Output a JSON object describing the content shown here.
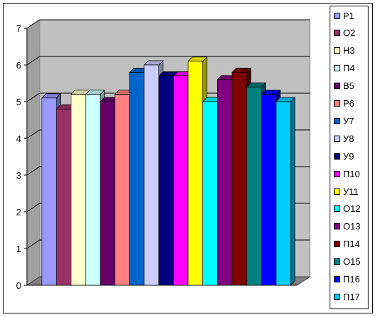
{
  "chart_data": {
    "type": "bar",
    "title": "",
    "xlabel": "",
    "ylabel": "",
    "ylim": [
      0,
      7
    ],
    "yticks": [
      "0",
      "1",
      "2",
      "3",
      "4",
      "5",
      "6",
      "7"
    ],
    "grid": true,
    "legend_position": "right",
    "series": [
      {
        "name": "Р1",
        "value": 5.1,
        "color": "#9999ff"
      },
      {
        "name": "О2",
        "value": 4.8,
        "color": "#993366"
      },
      {
        "name": "Н3",
        "value": 5.2,
        "color": "#ffffcc"
      },
      {
        "name": "П4",
        "value": 5.2,
        "color": "#ccffff"
      },
      {
        "name": "В5",
        "value": 5.0,
        "color": "#660066"
      },
      {
        "name": "Р6",
        "value": 5.2,
        "color": "#ff8080"
      },
      {
        "name": "У7",
        "value": 5.8,
        "color": "#0066cc"
      },
      {
        "name": "У8",
        "value": 6.0,
        "color": "#ccccff"
      },
      {
        "name": "У9",
        "value": 5.7,
        "color": "#000080"
      },
      {
        "name": "П10",
        "value": 5.7,
        "color": "#ff00ff"
      },
      {
        "name": "У11",
        "value": 6.1,
        "color": "#ffff00"
      },
      {
        "name": "О12",
        "value": 5.0,
        "color": "#00ffff"
      },
      {
        "name": "О13",
        "value": 5.6,
        "color": "#800080"
      },
      {
        "name": "П14",
        "value": 5.8,
        "color": "#800000"
      },
      {
        "name": "О15",
        "value": 5.4,
        "color": "#008080"
      },
      {
        "name": "П16",
        "value": 5.2,
        "color": "#0000ff"
      },
      {
        "name": "П17",
        "value": 5.0,
        "color": "#00ccff"
      }
    ]
  }
}
